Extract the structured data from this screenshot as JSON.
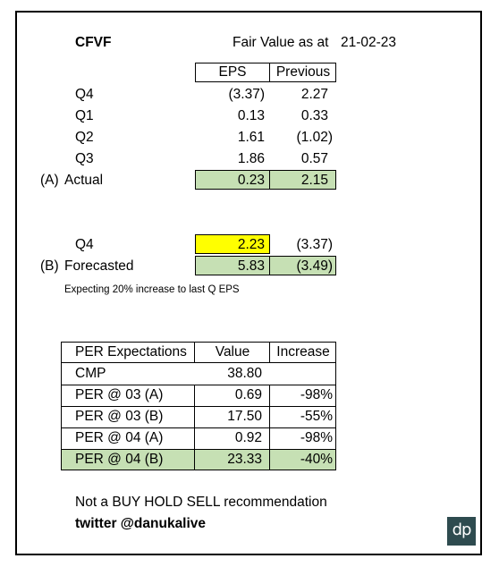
{
  "header": {
    "ticker": "CFVF",
    "fair_value_label": "Fair Value as at",
    "date": "21-02-23"
  },
  "eps_table": {
    "columns": [
      "EPS",
      "Previous"
    ],
    "rows": [
      {
        "label": "Q4",
        "eps": "(3.37)",
        "previous": "2.27"
      },
      {
        "label": "Q1",
        "eps": "0.13",
        "previous": "0.33"
      },
      {
        "label": "Q2",
        "eps": "1.61",
        "previous": "(1.02)"
      },
      {
        "label": "Q3",
        "eps": "1.86",
        "previous": "0.57"
      }
    ],
    "actual": {
      "prefix": "(A)",
      "label": "Actual",
      "eps": "0.23",
      "previous": "2.15"
    }
  },
  "forecast": {
    "q4": {
      "label": "Q4",
      "eps": "2.23",
      "previous": "(3.37)"
    },
    "total": {
      "prefix": "(B)",
      "label": "Forecasted",
      "eps": "5.83",
      "previous": "(3.49)"
    },
    "note": "Expecting 20% increase to last Q EPS"
  },
  "per_table": {
    "columns": [
      "PER Expectations",
      "Value",
      "Increase"
    ],
    "cmp": {
      "label": "CMP",
      "value": "38.80"
    },
    "rows": [
      {
        "label": "PER @ 03 (A)",
        "value": "0.69",
        "increase": "-98%"
      },
      {
        "label": "PER @ 03 (B)",
        "value": "17.50",
        "increase": "-55%"
      },
      {
        "label": "PER @ 04 (A)",
        "value": "0.92",
        "increase": "-98%"
      },
      {
        "label": "PER @ 04 (B)",
        "value": "23.33",
        "increase": "-40%"
      }
    ]
  },
  "footer": {
    "disclaimer": "Not a BUY HOLD SELL recommendation",
    "twitter": "twitter @danukalive",
    "logo_text": "dp"
  }
}
